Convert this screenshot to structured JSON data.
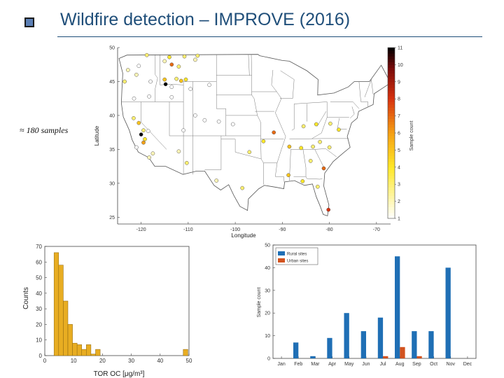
{
  "slide": {
    "title": "Wildfire detection – IMPROVE (2016)",
    "annotation": "≈ 180 samples"
  },
  "colors": {
    "title": "#1f4e79",
    "rural": "#1f6fb5",
    "urban": "#d2531f",
    "hist": "#e8ad22"
  },
  "chart_data": [
    {
      "type": "scatter",
      "title": "",
      "xlabel": "Longitude",
      "ylabel": "Latitude",
      "xlim": [
        -125,
        -67
      ],
      "ylim": [
        24,
        50
      ],
      "xticks": [
        -120,
        -110,
        -100,
        -90,
        -80,
        -70
      ],
      "yticks": [
        25,
        30,
        35,
        40,
        45,
        50
      ],
      "colorbar": {
        "label": "Sample count",
        "range": [
          1,
          11
        ],
        "ticks": [
          1,
          2,
          3,
          4,
          5,
          6,
          7,
          8,
          9,
          10,
          11
        ]
      },
      "points": [
        {
          "lon": -118.8,
          "lat": 48.9,
          "count": 3
        },
        {
          "lon": -114.0,
          "lat": 48.6,
          "count": 4
        },
        {
          "lon": -110.8,
          "lat": 48.7,
          "count": 3
        },
        {
          "lon": -108.0,
          "lat": 48.8,
          "count": 3
        },
        {
          "lon": -108.5,
          "lat": 48.2,
          "count": 2
        },
        {
          "lon": -113.5,
          "lat": 47.5,
          "count": 7
        },
        {
          "lon": -115.0,
          "lat": 48.0,
          "count": 2
        },
        {
          "lon": -112.0,
          "lat": 47.2,
          "count": 3
        },
        {
          "lon": -120.5,
          "lat": 47.3,
          "count": 1
        },
        {
          "lon": -122.8,
          "lat": 46.7,
          "count": 2
        },
        {
          "lon": -121.0,
          "lat": 46.0,
          "count": 2
        },
        {
          "lon": -123.5,
          "lat": 45.0,
          "count": 3
        },
        {
          "lon": -118.0,
          "lat": 45.0,
          "count": 1
        },
        {
          "lon": -115.0,
          "lat": 45.3,
          "count": 5
        },
        {
          "lon": -112.5,
          "lat": 45.4,
          "count": 3
        },
        {
          "lon": -111.5,
          "lat": 45.1,
          "count": 5
        },
        {
          "lon": -110.5,
          "lat": 45.3,
          "count": 4
        },
        {
          "lon": -105.5,
          "lat": 44.5,
          "count": 1
        },
        {
          "lon": -113.5,
          "lat": 44.2,
          "count": 1
        },
        {
          "lon": -109.5,
          "lat": 43.9,
          "count": 1
        },
        {
          "lon": -114.8,
          "lat": 44.6,
          "count": 11
        },
        {
          "lon": -121.5,
          "lat": 42.5,
          "count": 1
        },
        {
          "lon": -118.3,
          "lat": 42.8,
          "count": 1
        },
        {
          "lon": -113.5,
          "lat": 42.7,
          "count": 1
        },
        {
          "lon": -108.5,
          "lat": 40.0,
          "count": 1
        },
        {
          "lon": -106.5,
          "lat": 39.3,
          "count": 1
        },
        {
          "lon": -103.5,
          "lat": 39.1,
          "count": 1
        },
        {
          "lon": -100.5,
          "lat": 38.7,
          "count": 1
        },
        {
          "lon": -111.0,
          "lat": 37.8,
          "count": 1
        },
        {
          "lon": -121.6,
          "lat": 39.6,
          "count": 3
        },
        {
          "lon": -120.5,
          "lat": 38.9,
          "count": 5
        },
        {
          "lon": -119.5,
          "lat": 37.8,
          "count": 3
        },
        {
          "lon": -120.0,
          "lat": 37.2,
          "count": 11
        },
        {
          "lon": -119.2,
          "lat": 36.5,
          "count": 4
        },
        {
          "lon": -118.5,
          "lat": 37.7,
          "count": 1
        },
        {
          "lon": -119.5,
          "lat": 36.0,
          "count": 6
        },
        {
          "lon": -117.5,
          "lat": 34.4,
          "count": 2
        },
        {
          "lon": -118.3,
          "lat": 33.8,
          "count": 2
        },
        {
          "lon": -121.0,
          "lat": 35.3,
          "count": 1
        },
        {
          "lon": -112.0,
          "lat": 34.7,
          "count": 2
        },
        {
          "lon": -110.3,
          "lat": 33.0,
          "count": 3
        },
        {
          "lon": -91.8,
          "lat": 37.5,
          "count": 7
        },
        {
          "lon": -85.5,
          "lat": 38.4,
          "count": 3
        },
        {
          "lon": -82.8,
          "lat": 38.7,
          "count": 4
        },
        {
          "lon": -79.8,
          "lat": 38.8,
          "count": 3
        },
        {
          "lon": -78.0,
          "lat": 37.9,
          "count": 4
        },
        {
          "lon": -82.0,
          "lat": 36.1,
          "count": 3
        },
        {
          "lon": -83.5,
          "lat": 35.4,
          "count": 3
        },
        {
          "lon": -80.0,
          "lat": 35.3,
          "count": 3
        },
        {
          "lon": -94.0,
          "lat": 36.2,
          "count": 4
        },
        {
          "lon": -88.5,
          "lat": 35.4,
          "count": 5
        },
        {
          "lon": -86.0,
          "lat": 35.2,
          "count": 4
        },
        {
          "lon": -84.0,
          "lat": 33.3,
          "count": 3
        },
        {
          "lon": -81.2,
          "lat": 32.2,
          "count": 7
        },
        {
          "lon": -88.7,
          "lat": 31.2,
          "count": 5
        },
        {
          "lon": -85.7,
          "lat": 30.3,
          "count": 4
        },
        {
          "lon": -82.5,
          "lat": 29.5,
          "count": 3
        },
        {
          "lon": -80.2,
          "lat": 26.1,
          "count": 8
        },
        {
          "lon": -97.0,
          "lat": 34.6,
          "count": 3
        },
        {
          "lon": -98.5,
          "lat": 29.3,
          "count": 3
        },
        {
          "lon": -104.0,
          "lat": 30.4,
          "count": 2
        }
      ]
    },
    {
      "type": "bar",
      "title": "",
      "xlabel": "TOR OC [μg/m³]",
      "ylabel": "Counts",
      "bin_width": 1.6,
      "bin_start": 3.2,
      "xlim": [
        0,
        50
      ],
      "ylim": [
        0,
        70
      ],
      "xticks": [
        0,
        10,
        20,
        30,
        40,
        50
      ],
      "yticks": [
        0,
        10,
        20,
        30,
        40,
        50,
        60,
        70
      ],
      "bins": [
        {
          "x0": 3.2,
          "x1": 4.8,
          "count": 66
        },
        {
          "x0": 4.8,
          "x1": 6.4,
          "count": 58
        },
        {
          "x0": 6.4,
          "x1": 8.0,
          "count": 35
        },
        {
          "x0": 8.0,
          "x1": 9.6,
          "count": 20
        },
        {
          "x0": 9.6,
          "x1": 11.2,
          "count": 8
        },
        {
          "x0": 11.2,
          "x1": 12.8,
          "count": 7
        },
        {
          "x0": 12.8,
          "x1": 14.4,
          "count": 4
        },
        {
          "x0": 14.4,
          "x1": 16.0,
          "count": 7
        },
        {
          "x0": 16.0,
          "x1": 17.6,
          "count": 1
        },
        {
          "x0": 17.6,
          "x1": 19.2,
          "count": 4
        },
        {
          "x0": 48.0,
          "x1": 49.6,
          "count": 4
        }
      ]
    },
    {
      "type": "bar",
      "title": "",
      "xlabel": "",
      "ylabel": "Sample count",
      "categories": [
        "Jan",
        "Feb",
        "Mar",
        "Apr",
        "May",
        "Jun",
        "Jul",
        "Aug",
        "Sep",
        "Oct",
        "Nov",
        "Dec"
      ],
      "ylim": [
        0,
        50
      ],
      "yticks": [
        0,
        10,
        20,
        30,
        40,
        50
      ],
      "legend_position": "top-left",
      "series": [
        {
          "name": "Rural sites",
          "values": [
            0,
            7,
            1,
            9,
            20,
            12,
            18,
            45,
            12,
            12,
            40,
            0
          ]
        },
        {
          "name": "Urban sites",
          "values": [
            0,
            0,
            0,
            0,
            0,
            0,
            1,
            5,
            1,
            0,
            0,
            0
          ]
        }
      ]
    }
  ]
}
